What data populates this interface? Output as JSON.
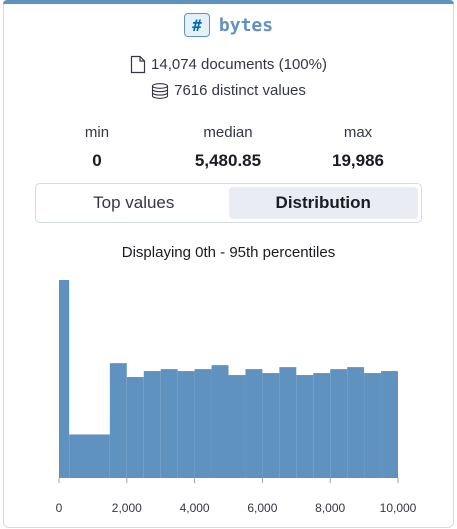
{
  "field": {
    "type_icon": "#",
    "name": "bytes"
  },
  "summary": {
    "documents_text": "14,074 documents (100%)",
    "distinct_text": "7616 distinct values"
  },
  "stats": {
    "min_label": "min",
    "min_value": "0",
    "median_label": "median",
    "median_value": "5,480.85",
    "max_label": "max",
    "max_value": "19,986"
  },
  "tabs": [
    {
      "label": "Top values",
      "active": false
    },
    {
      "label": "Distribution",
      "active": true
    }
  ],
  "distribution": {
    "subtitle": "Displaying 0th - 95th percentiles"
  },
  "colors": {
    "bar": "#6092c0",
    "accent": "#6092c0"
  },
  "chart_data": {
    "type": "bar",
    "title": "",
    "xlabel": "",
    "ylabel": "",
    "xlim": [
      0,
      10000
    ],
    "x_ticks": [
      "0",
      "2,000",
      "4,000",
      "6,000",
      "8,000",
      "10,000"
    ],
    "x_tick_values": [
      0,
      2000,
      4000,
      6000,
      8000,
      10000
    ],
    "grid": false,
    "bins": [
      {
        "from": 0,
        "to": 300,
        "value": 1.0
      },
      {
        "from": 300,
        "to": 1500,
        "value": 0.22
      },
      {
        "from": 1500,
        "to": 2000,
        "value": 0.58
      },
      {
        "from": 2000,
        "to": 2500,
        "value": 0.51
      },
      {
        "from": 2500,
        "to": 3000,
        "value": 0.54
      },
      {
        "from": 3000,
        "to": 3500,
        "value": 0.55
      },
      {
        "from": 3500,
        "to": 4000,
        "value": 0.54
      },
      {
        "from": 4000,
        "to": 4500,
        "value": 0.55
      },
      {
        "from": 4500,
        "to": 5000,
        "value": 0.57
      },
      {
        "from": 5000,
        "to": 5500,
        "value": 0.52
      },
      {
        "from": 5500,
        "to": 6000,
        "value": 0.55
      },
      {
        "from": 6000,
        "to": 6500,
        "value": 0.53
      },
      {
        "from": 6500,
        "to": 7000,
        "value": 0.56
      },
      {
        "from": 7000,
        "to": 7500,
        "value": 0.52
      },
      {
        "from": 7500,
        "to": 8000,
        "value": 0.53
      },
      {
        "from": 8000,
        "to": 8500,
        "value": 0.55
      },
      {
        "from": 8500,
        "to": 9000,
        "value": 0.56
      },
      {
        "from": 9000,
        "to": 9500,
        "value": 0.53
      },
      {
        "from": 9500,
        "to": 10000,
        "value": 0.54
      }
    ]
  }
}
